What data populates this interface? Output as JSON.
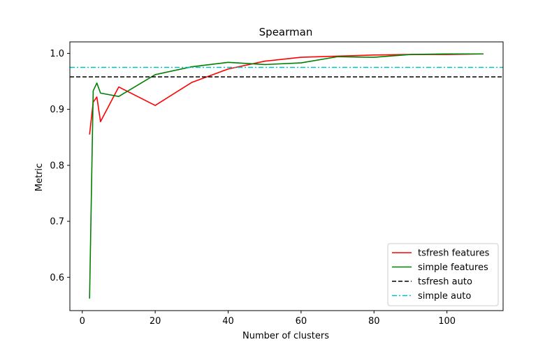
{
  "chart_data": {
    "type": "line",
    "title": "Spearman",
    "xlabel": "Number of clusters",
    "ylabel": "Metric",
    "xlim": [
      -3.4,
      115.4
    ],
    "ylim": [
      0.5405,
      1.0205
    ],
    "xticks": [
      0,
      20,
      40,
      60,
      80,
      100
    ],
    "yticks": [
      0.6,
      0.7,
      0.8,
      0.9,
      1.0
    ],
    "ytick_labels": [
      "0.6",
      "0.7",
      "0.8",
      "0.9",
      "1.0"
    ],
    "grid": false,
    "legend_position": "lower-right",
    "series": [
      {
        "name": "tsfresh features",
        "color": "#ff0000",
        "dash": "solid",
        "x": [
          2,
          3,
          4,
          5,
          10,
          20,
          30,
          40,
          50,
          60,
          70,
          80,
          90,
          100,
          110
        ],
        "y": [
          0.855,
          0.913,
          0.922,
          0.878,
          0.94,
          0.907,
          0.948,
          0.972,
          0.986,
          0.993,
          0.995,
          0.997,
          0.998,
          0.998,
          0.999
        ]
      },
      {
        "name": "simple features",
        "color": "#008000",
        "dash": "solid",
        "x": [
          2,
          3,
          4,
          5,
          10,
          20,
          30,
          40,
          50,
          60,
          70,
          80,
          90,
          100,
          110
        ],
        "y": [
          0.562,
          0.933,
          0.947,
          0.929,
          0.923,
          0.962,
          0.976,
          0.984,
          0.98,
          0.983,
          0.994,
          0.993,
          0.998,
          0.999,
          0.999
        ]
      },
      {
        "name": "tsfresh auto",
        "color": "#000000",
        "dash": "dashed",
        "hline": 0.958
      },
      {
        "name": "simple auto",
        "color": "#00bfbf",
        "dash": "dashdot",
        "hline": 0.975
      }
    ]
  }
}
